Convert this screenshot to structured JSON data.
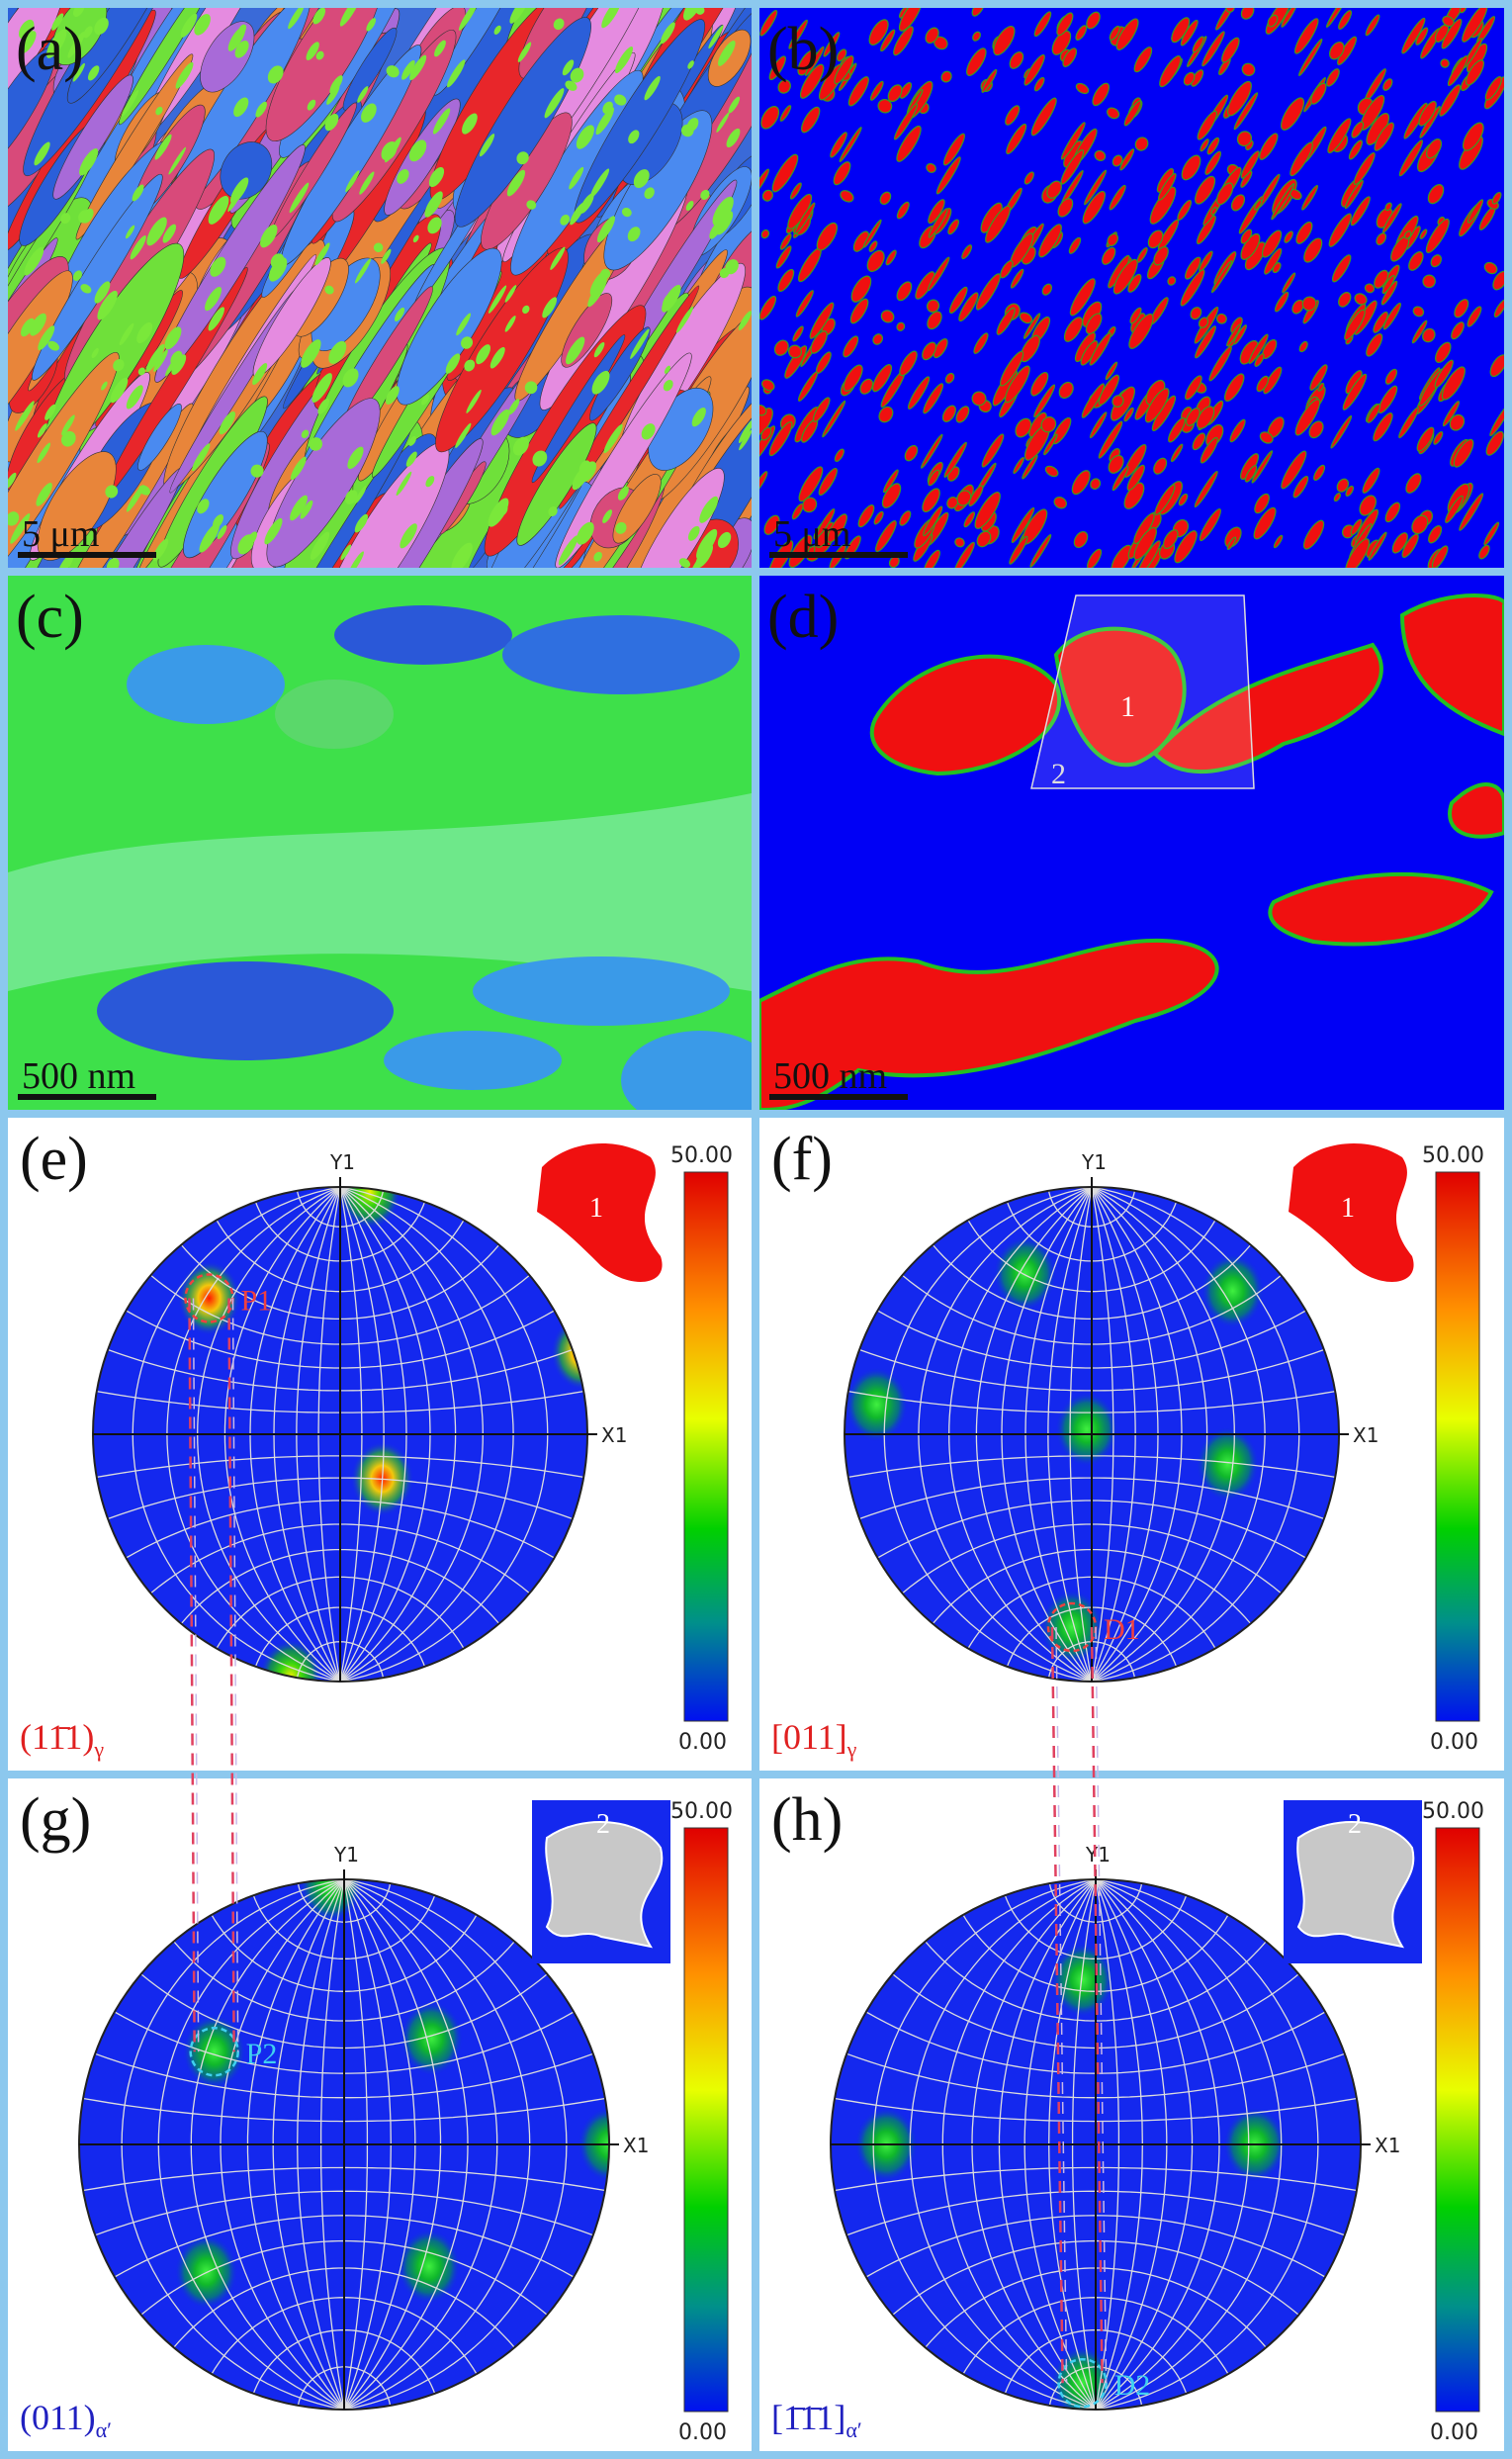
{
  "maps": [
    {
      "label": "(a)",
      "scale_bar": "5 μm"
    },
    {
      "label": "(b)",
      "scale_bar": "5 μm"
    },
    {
      "label": "(c)",
      "scale_bar": "500 nm"
    },
    {
      "label": "(d)",
      "scale_bar": "500 nm",
      "regions": [
        "1",
        "2"
      ]
    }
  ],
  "pole_figures": [
    {
      "label": "(e)",
      "y_axis": "Y1",
      "x_axis": "X1",
      "colorbar_max": "50.00",
      "colorbar_min": "0.00",
      "inset_label": "1",
      "marker": "P1",
      "plane": "(11̄1)",
      "phase": "γ"
    },
    {
      "label": "(f)",
      "y_axis": "Y1",
      "x_axis": "X1",
      "colorbar_max": "50.00",
      "colorbar_min": "0.00",
      "inset_label": "1",
      "marker": "D1",
      "plane": "[011]",
      "phase": "γ"
    },
    {
      "label": "(g)",
      "y_axis": "Y1",
      "x_axis": "X1",
      "colorbar_max": "50.00",
      "colorbar_min": "0.00",
      "inset_label": "2",
      "marker": "P2",
      "plane": "(011)",
      "phase": "α′"
    },
    {
      "label": "(h)",
      "y_axis": "Y1",
      "x_axis": "X1",
      "colorbar_max": "50.00",
      "colorbar_min": "0.00",
      "inset_label": "2",
      "marker": "D2",
      "plane": "[1̄1̄1]",
      "phase": "α′"
    }
  ]
}
